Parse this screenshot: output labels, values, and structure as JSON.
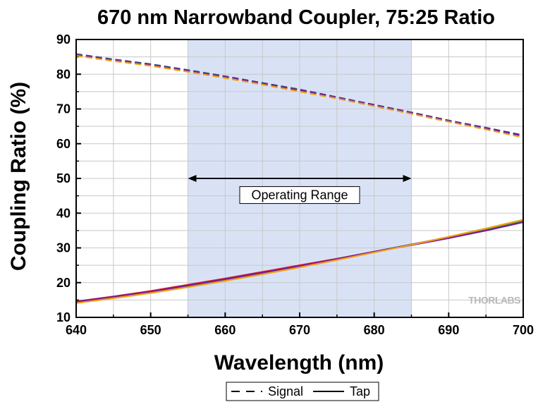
{
  "chart_data": {
    "type": "line",
    "title": "670 nm Narrowband Coupler, 75:25 Ratio",
    "xlabel": "Wavelength (nm)",
    "ylabel": "Coupling Ratio (%)",
    "xlim": [
      640,
      700
    ],
    "ylim": [
      10,
      90
    ],
    "xticks": [
      640,
      650,
      660,
      670,
      680,
      690,
      700
    ],
    "yticks": [
      10,
      20,
      30,
      40,
      50,
      60,
      70,
      80,
      90
    ],
    "grid": true,
    "legend_position": "bottom",
    "shaded_region": {
      "x_range": [
        655,
        685
      ],
      "color": "#d9e2f5"
    },
    "annotation": {
      "text": "Operating Range",
      "x_range": [
        655,
        685
      ],
      "y": 50
    },
    "watermark": "THORLABS",
    "x": [
      640,
      645,
      650,
      655,
      660,
      665,
      670,
      675,
      680,
      685,
      690,
      695,
      700
    ],
    "series": [
      {
        "group": "Signal",
        "style": "dashed",
        "color": "#e8201a",
        "values": [
          85.5,
          84.0,
          82.6,
          80.9,
          79.1,
          77.2,
          75.3,
          73.2,
          71.0,
          68.8,
          66.5,
          64.3,
          62.0
        ]
      },
      {
        "group": "Signal",
        "style": "dashed",
        "color": "#1a1ab8",
        "values": [
          85.8,
          84.3,
          82.9,
          81.2,
          79.4,
          77.5,
          75.6,
          73.4,
          71.2,
          69.0,
          66.7,
          64.6,
          62.4
        ]
      },
      {
        "group": "Signal",
        "style": "dashed",
        "color": "#2a9a2a",
        "values": [
          85.7,
          84.2,
          82.8,
          81.1,
          79.3,
          77.4,
          75.5,
          73.3,
          71.1,
          68.9,
          66.6,
          64.5,
          62.2
        ]
      },
      {
        "group": "Signal",
        "style": "dashed",
        "color": "#7a1a9a",
        "values": [
          85.6,
          84.1,
          82.7,
          81.0,
          79.2,
          77.3,
          75.4,
          73.25,
          71.05,
          68.85,
          66.55,
          64.4,
          62.3
        ]
      },
      {
        "group": "Signal",
        "style": "dashed",
        "color": "#f0a018",
        "values": [
          85.3,
          83.8,
          82.4,
          80.7,
          78.9,
          77.0,
          75.0,
          73.0,
          70.8,
          68.6,
          66.3,
          64.1,
          61.8
        ]
      },
      {
        "group": "Tap",
        "style": "solid",
        "color": "#e8201a",
        "values": [
          14.6,
          16.0,
          17.6,
          19.4,
          21.2,
          23.1,
          25.0,
          26.9,
          28.9,
          30.9,
          33.0,
          35.2,
          37.6
        ]
      },
      {
        "group": "Tap",
        "style": "solid",
        "color": "#1a1ab8",
        "values": [
          14.4,
          15.8,
          17.3,
          19.0,
          20.9,
          22.8,
          24.7,
          26.8,
          28.9,
          31.0,
          33.1,
          35.4,
          37.8
        ]
      },
      {
        "group": "Tap",
        "style": "solid",
        "color": "#2a9a2a",
        "values": [
          14.3,
          15.7,
          17.2,
          18.9,
          20.7,
          22.6,
          24.5,
          26.6,
          28.8,
          30.9,
          33.1,
          35.4,
          37.8
        ]
      },
      {
        "group": "Tap",
        "style": "solid",
        "color": "#7a1a9a",
        "values": [
          14.5,
          15.9,
          17.4,
          19.2,
          21.0,
          22.9,
          24.8,
          26.8,
          28.9,
          30.8,
          32.8,
          35.0,
          37.4
        ]
      },
      {
        "group": "Tap",
        "style": "solid",
        "color": "#f0a018",
        "values": [
          14.1,
          15.5,
          17.0,
          18.7,
          20.5,
          22.4,
          24.4,
          26.5,
          28.7,
          30.9,
          33.2,
          35.6,
          38.1
        ]
      }
    ],
    "legend": [
      {
        "label": "Signal",
        "style": "dashed"
      },
      {
        "label": "Tap",
        "style": "solid"
      }
    ]
  }
}
